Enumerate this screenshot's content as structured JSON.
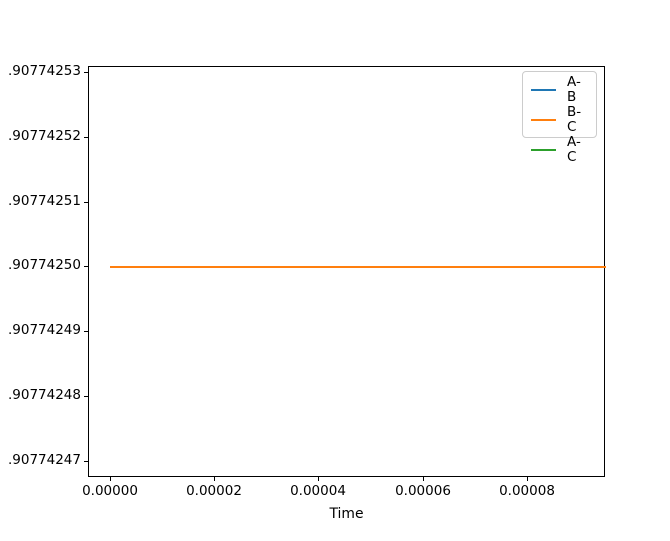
{
  "figure": {
    "background": "#ffffff",
    "axis_color": "#000000"
  },
  "chart_data": {
    "type": "line",
    "title": "",
    "xlabel": "Time",
    "ylabel": "",
    "grid": false,
    "x_tick_labels": [
      "0.00000",
      "0.00002",
      "0.00004",
      "0.00006",
      "0.00008"
    ],
    "y_tick_labels": [
      ".90774253",
      ".90774252",
      ".90774251",
      ".90774250",
      ".90774249",
      ".90774248",
      ".90774247"
    ],
    "x_range_shown": [
      0.0,
      9.5e-05
    ],
    "legend": {
      "position": "upper right",
      "entries": [
        {
          "label": "A-B",
          "color": "#1f77b4"
        },
        {
          "label": "B-C",
          "color": "#ff7f0e"
        },
        {
          "label": "A-C",
          "color": "#2ca02c"
        }
      ]
    },
    "series": [
      {
        "name": "A-B",
        "color": "#1f77b4",
        "y_constant": ".90774250"
      },
      {
        "name": "B-C",
        "color": "#ff7f0e",
        "y_constant": ".90774250"
      },
      {
        "name": "A-C",
        "color": "#2ca02c",
        "y_constant": ".90774250"
      }
    ],
    "visible_line": {
      "color": "#ff7f0e",
      "y_value": ".90774250"
    }
  }
}
